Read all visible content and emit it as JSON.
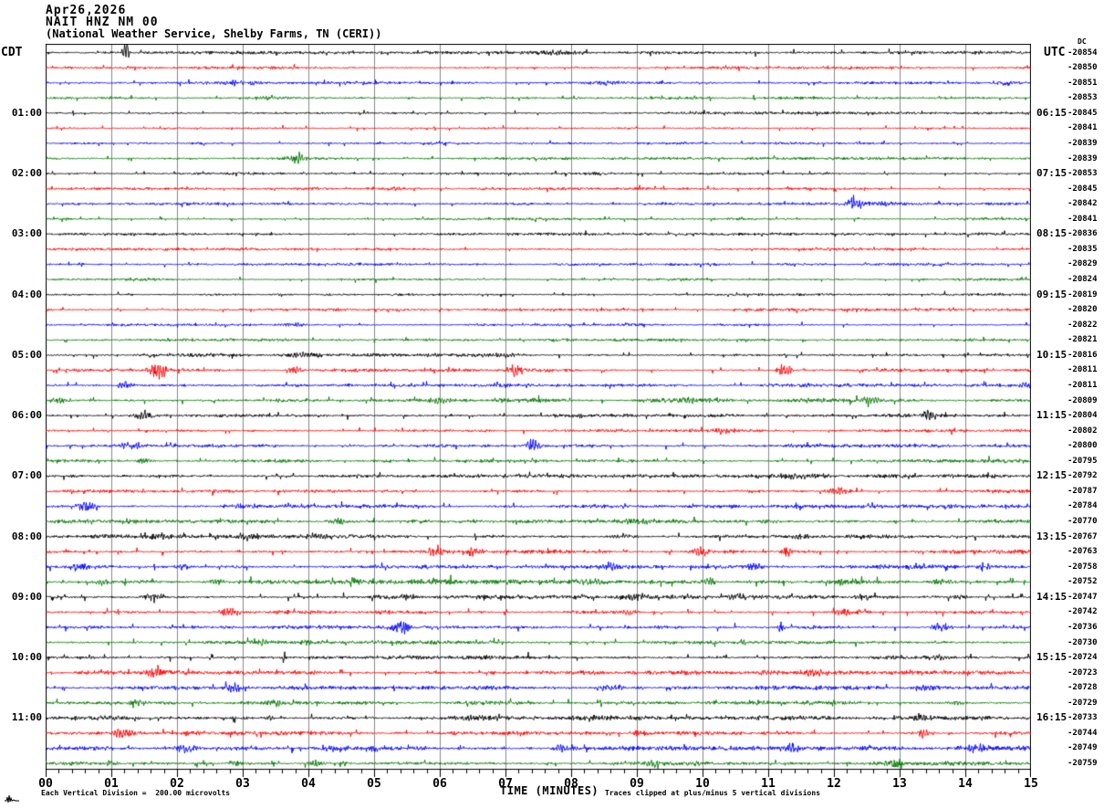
{
  "header": {
    "date": "Apr26,2026",
    "station": "NAIT HNZ NM 00",
    "description": "(National Weather Service, Shelby Farms, TN (CERI))"
  },
  "left_axis": {
    "label": "CDT",
    "hours": [
      "01:00",
      "02:00",
      "03:00",
      "04:00",
      "05:00",
      "06:00",
      "07:00",
      "08:00",
      "09:00",
      "10:00",
      "11:00"
    ]
  },
  "right_axis": {
    "label": "UTC",
    "dc_header": "DC",
    "hours": [
      "06:15",
      "07:15",
      "08:15",
      "09:15",
      "10:15",
      "11:15",
      "12:15",
      "13:15",
      "14:15",
      "15:15",
      "16:15"
    ],
    "dc_values": [
      "-20854",
      "-20850",
      "-20851",
      "-20853",
      "-20845",
      "-20841",
      "-20839",
      "-20839",
      "-20853",
      "-20845",
      "-20842",
      "-20841",
      "-20836",
      "-20835",
      "-20829",
      "-20824",
      "-20819",
      "-20820",
      "-20822",
      "-20821",
      "-20816",
      "-20811",
      "-20811",
      "-20809",
      "-20804",
      "-20802",
      "-20800",
      "-20795",
      "-20792",
      "-20787",
      "-20784",
      "-20770",
      "-20767",
      "-20763",
      "-20758",
      "-20752",
      "-20747",
      "-20742",
      "-20736",
      "-20730",
      "-20724",
      "-20723",
      "-20728",
      "-20729",
      "-20733",
      "-20744",
      "-20749",
      "-20759"
    ]
  },
  "x_axis": {
    "label": "TIME (MINUTES)",
    "ticks": [
      "00",
      "01",
      "02",
      "03",
      "04",
      "05",
      "06",
      "07",
      "08",
      "09",
      "10",
      "11",
      "12",
      "13",
      "14",
      "15"
    ]
  },
  "footer": {
    "scale_note": "Each Vertical Division =  200.00 microvolts",
    "clip_note": "Traces clipped at plus/minus 5 vertical divisions"
  },
  "colors": {
    "traces": [
      "#000000",
      "#ff0000",
      "#0000ff",
      "#007700"
    ],
    "color_cycle_names": [
      "black",
      "red",
      "blue",
      "green"
    ],
    "grid": "#888888",
    "frame": "#000000"
  },
  "chart_data": {
    "type": "line",
    "kind": "helicorder-seismogram",
    "title": "NAIT HNZ NM 00 (National Weather Service, Shelby Farms, TN (CERI))",
    "xlabel": "TIME (MINUTES)",
    "x_range_minutes": [
      0,
      15
    ],
    "row_count": 48,
    "rows_per_hour": 4,
    "minutes_per_row": 15,
    "grid": "vertical-every-minute",
    "event_format": "[minute, amplitude_px, width_min]",
    "rows": [
      {
        "noise": 1.15,
        "events": [
          [
            1.22,
            9,
            0.05
          ],
          [
            7.8,
            2,
            0.4
          ]
        ]
      },
      {
        "noise": 1.0,
        "events": []
      },
      {
        "noise": 1.0,
        "events": [
          [
            2.95,
            2,
            0.35
          ],
          [
            8.5,
            1.8,
            0.3
          ],
          [
            14.6,
            1.8,
            0.25
          ]
        ]
      },
      {
        "noise": 1.0,
        "events": [
          [
            3.35,
            1.8,
            0.3
          ]
        ]
      },
      {
        "noise": 1.0,
        "events": []
      },
      {
        "noise": 1.0,
        "events": []
      },
      {
        "noise": 1.0,
        "events": []
      },
      {
        "noise": 1.0,
        "events": [
          [
            3.82,
            5.5,
            0.12
          ]
        ]
      },
      {
        "noise": 1.0,
        "events": []
      },
      {
        "noise": 1.0,
        "events": [
          [
            5.3,
            1.5,
            0.3
          ]
        ]
      },
      {
        "noise": 1.0,
        "events": [
          [
            12.32,
            8.5,
            0.1
          ],
          [
            12.7,
            2,
            0.25
          ]
        ]
      },
      {
        "noise": 1.0,
        "events": []
      },
      {
        "noise": 1.0,
        "events": []
      },
      {
        "noise": 1.0,
        "events": []
      },
      {
        "noise": 1.0,
        "events": []
      },
      {
        "noise": 1.0,
        "events": []
      },
      {
        "noise": 1.0,
        "events": []
      },
      {
        "noise": 1.0,
        "events": []
      },
      {
        "noise": 1.0,
        "events": [
          [
            3.8,
            1.5,
            0.25
          ]
        ]
      },
      {
        "noise": 1.0,
        "events": []
      },
      {
        "noise": 1.25,
        "events": [
          [
            3.9,
            1.8,
            0.25
          ],
          [
            7.0,
            1.8,
            0.3
          ]
        ]
      },
      {
        "noise": 1.25,
        "events": [
          [
            1.72,
            7.5,
            0.15
          ],
          [
            3.8,
            3.5,
            0.12
          ],
          [
            7.15,
            6.5,
            0.12
          ],
          [
            11.25,
            6.5,
            0.1
          ]
        ]
      },
      {
        "noise": 1.25,
        "events": [
          [
            1.2,
            3.5,
            0.12
          ],
          [
            14.95,
            3,
            0.15
          ]
        ]
      },
      {
        "noise": 1.5,
        "events": [
          [
            0.25,
            2.5,
            0.15
          ],
          [
            6.0,
            2.8,
            0.2
          ],
          [
            9.85,
            2.8,
            0.25
          ],
          [
            12.55,
            3.5,
            0.2
          ]
        ]
      },
      {
        "noise": 1.25,
        "events": [
          [
            1.5,
            3.5,
            0.18
          ],
          [
            13.42,
            4,
            0.1
          ]
        ]
      },
      {
        "noise": 1.25,
        "events": [
          [
            10.32,
            3.5,
            0.12
          ]
        ]
      },
      {
        "noise": 1.25,
        "events": [
          [
            1.3,
            3.5,
            0.18
          ],
          [
            7.42,
            6.5,
            0.1
          ]
        ]
      },
      {
        "noise": 1.25,
        "events": [
          [
            1.5,
            2.5,
            0.12
          ]
        ]
      },
      {
        "noise": 1.3,
        "events": [
          [
            11.5,
            2,
            0.4
          ]
        ]
      },
      {
        "noise": 1.25,
        "events": [
          [
            12.05,
            3.5,
            0.18
          ]
        ]
      },
      {
        "noise": 1.3,
        "events": [
          [
            0.62,
            4.5,
            0.15
          ],
          [
            3.0,
            2,
            0.25
          ]
        ]
      },
      {
        "noise": 1.35,
        "events": [
          [
            4.42,
            3,
            0.18
          ],
          [
            9.0,
            1.8,
            0.3
          ]
        ]
      },
      {
        "noise": 1.4,
        "events": [
          [
            1.7,
            2.8,
            0.2
          ],
          [
            3.1,
            2.8,
            0.18
          ],
          [
            4.1,
            2.8,
            0.2
          ],
          [
            8.8,
            2.5,
            0.2
          ],
          [
            11.5,
            2.5,
            0.2
          ]
        ]
      },
      {
        "noise": 1.4,
        "events": [
          [
            5.95,
            3.5,
            0.2
          ],
          [
            6.5,
            3.8,
            0.12
          ],
          [
            10.0,
            4,
            0.15
          ],
          [
            11.27,
            8,
            0.07
          ]
        ]
      },
      {
        "noise": 1.4,
        "events": [
          [
            0.5,
            3.5,
            0.15
          ],
          [
            2.1,
            2.8,
            0.12
          ],
          [
            8.6,
            4,
            0.12
          ],
          [
            10.8,
            2.8,
            0.15
          ],
          [
            13.3,
            2.8,
            0.15
          ],
          [
            14.3,
            3.5,
            0.12
          ]
        ]
      },
      {
        "noise": 1.7,
        "events": [
          [
            0.9,
            2.8,
            0.15
          ],
          [
            2.6,
            2.8,
            0.15
          ],
          [
            4.7,
            3.5,
            0.15
          ],
          [
            8.3,
            2.8,
            0.25
          ],
          [
            10.1,
            3.8,
            0.12
          ],
          [
            12.2,
            3,
            0.35
          ],
          [
            13.6,
            3,
            0.18
          ]
        ]
      },
      {
        "noise": 1.5,
        "events": [
          [
            1.6,
            3.2,
            0.15
          ],
          [
            5.5,
            2.2,
            0.15
          ],
          [
            9.0,
            2.8,
            0.15
          ],
          [
            10.5,
            2.8,
            0.15
          ],
          [
            12.45,
            3.2,
            0.15
          ],
          [
            13.9,
            2.5,
            0.12
          ]
        ]
      },
      {
        "noise": 1.45,
        "events": [
          [
            2.8,
            3.2,
            0.2
          ],
          [
            8.9,
            2.8,
            0.12
          ],
          [
            12.15,
            3.8,
            0.12
          ],
          [
            12.45,
            2.8,
            0.12
          ]
        ]
      },
      {
        "noise": 1.4,
        "events": [
          [
            5.42,
            6.5,
            0.15
          ],
          [
            11.2,
            5,
            0.06
          ],
          [
            13.62,
            4.5,
            0.12
          ]
        ]
      },
      {
        "noise": 1.4,
        "events": [
          [
            3.3,
            2.8,
            0.12
          ],
          [
            4.0,
            2.8,
            0.08
          ],
          [
            10.62,
            3.8,
            0.05
          ]
        ]
      },
      {
        "noise": 1.45,
        "events": [
          [
            3.63,
            5.5,
            0.03
          ],
          [
            13.5,
            2.5,
            0.25
          ]
        ]
      },
      {
        "noise": 1.5,
        "events": [
          [
            1.68,
            5.5,
            0.15
          ],
          [
            11.7,
            2.2,
            0.25
          ]
        ]
      },
      {
        "noise": 1.5,
        "events": [
          [
            2.85,
            3.8,
            0.2
          ],
          [
            8.6,
            2.8,
            0.18
          ],
          [
            13.45,
            2.8,
            0.18
          ]
        ]
      },
      {
        "noise": 1.5,
        "events": [
          [
            1.35,
            3.5,
            0.12
          ],
          [
            3.5,
            3.5,
            0.08
          ],
          [
            10.8,
            2.8,
            0.15
          ],
          [
            13.9,
            2.2,
            0.15
          ]
        ]
      },
      {
        "noise": 1.65,
        "events": [
          [
            3.4,
            2.2,
            0.08
          ],
          [
            6.6,
            2.5,
            0.5
          ],
          [
            13.3,
            2.8,
            0.15
          ]
        ]
      },
      {
        "noise": 1.5,
        "events": [
          [
            1.2,
            4.5,
            0.2
          ],
          [
            9.1,
            2.8,
            0.18
          ],
          [
            13.38,
            4.5,
            0.12
          ]
        ]
      },
      {
        "noise": 1.6,
        "events": [
          [
            2.15,
            3.8,
            0.18
          ],
          [
            4.3,
            2.8,
            0.12
          ],
          [
            5.0,
            2.8,
            0.1
          ],
          [
            7.9,
            3.8,
            0.2
          ],
          [
            11.35,
            3.8,
            0.15
          ],
          [
            14.15,
            3.8,
            0.15
          ]
        ]
      },
      {
        "noise": 1.5,
        "events": [
          [
            1.0,
            2.8,
            0.1
          ],
          [
            2.9,
            2.8,
            0.1
          ],
          [
            4.1,
            2.8,
            0.15
          ],
          [
            4.55,
            2.8,
            0.08
          ],
          [
            9.25,
            3.8,
            0.12
          ],
          [
            12.9,
            3.8,
            0.15
          ]
        ]
      }
    ]
  }
}
